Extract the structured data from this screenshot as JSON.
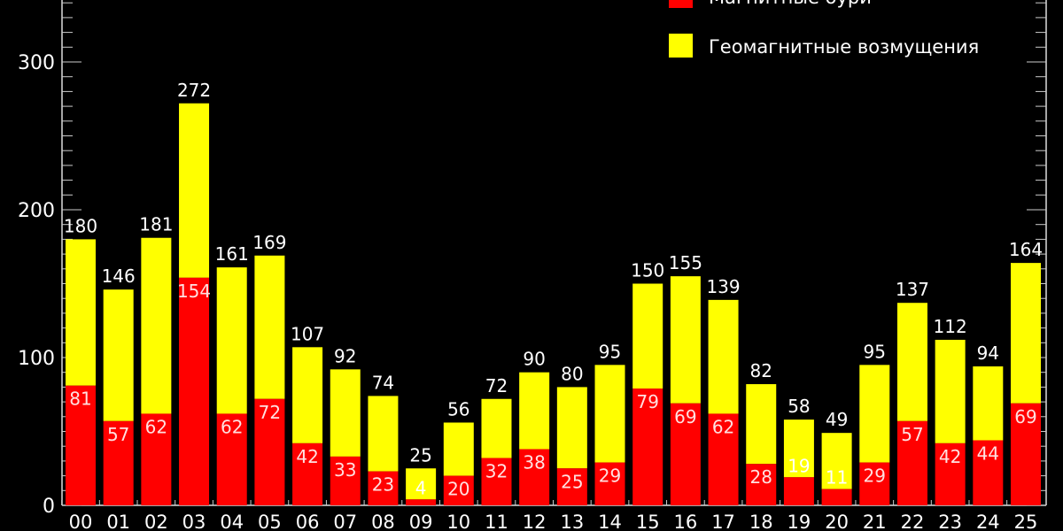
{
  "chart_data": {
    "type": "bar",
    "stacked": true,
    "title": "",
    "xlabel": "",
    "ylabel": "",
    "ylim": [
      0,
      340
    ],
    "yticks": [
      0,
      100,
      200,
      300
    ],
    "grid": false,
    "legend_placement": "top-right",
    "categories": [
      "00",
      "01",
      "02",
      "03",
      "04",
      "05",
      "06",
      "07",
      "08",
      "09",
      "10",
      "11",
      "12",
      "13",
      "14",
      "15",
      "16",
      "17",
      "18",
      "19",
      "20",
      "21",
      "22",
      "23",
      "24",
      "25"
    ],
    "totals": [
      180,
      146,
      181,
      272,
      161,
      169,
      107,
      92,
      74,
      25,
      56,
      72,
      90,
      80,
      95,
      150,
      155,
      139,
      82,
      58,
      49,
      95,
      137,
      112,
      94,
      164
    ],
    "series": [
      {
        "name": "Магнитные бури",
        "color": "#ff0000",
        "values": [
          81,
          57,
          62,
          154,
          62,
          72,
          42,
          33,
          23,
          4,
          20,
          32,
          38,
          25,
          29,
          79,
          69,
          62,
          28,
          19,
          11,
          29,
          57,
          42,
          44,
          69
        ]
      },
      {
        "name": "Геомагнитные возмущения",
        "color": "#ffff00",
        "values": [
          99,
          89,
          119,
          118,
          99,
          97,
          65,
          59,
          51,
          21,
          36,
          40,
          52,
          55,
          66,
          71,
          86,
          77,
          54,
          39,
          38,
          66,
          80,
          70,
          50,
          95
        ]
      }
    ]
  }
}
